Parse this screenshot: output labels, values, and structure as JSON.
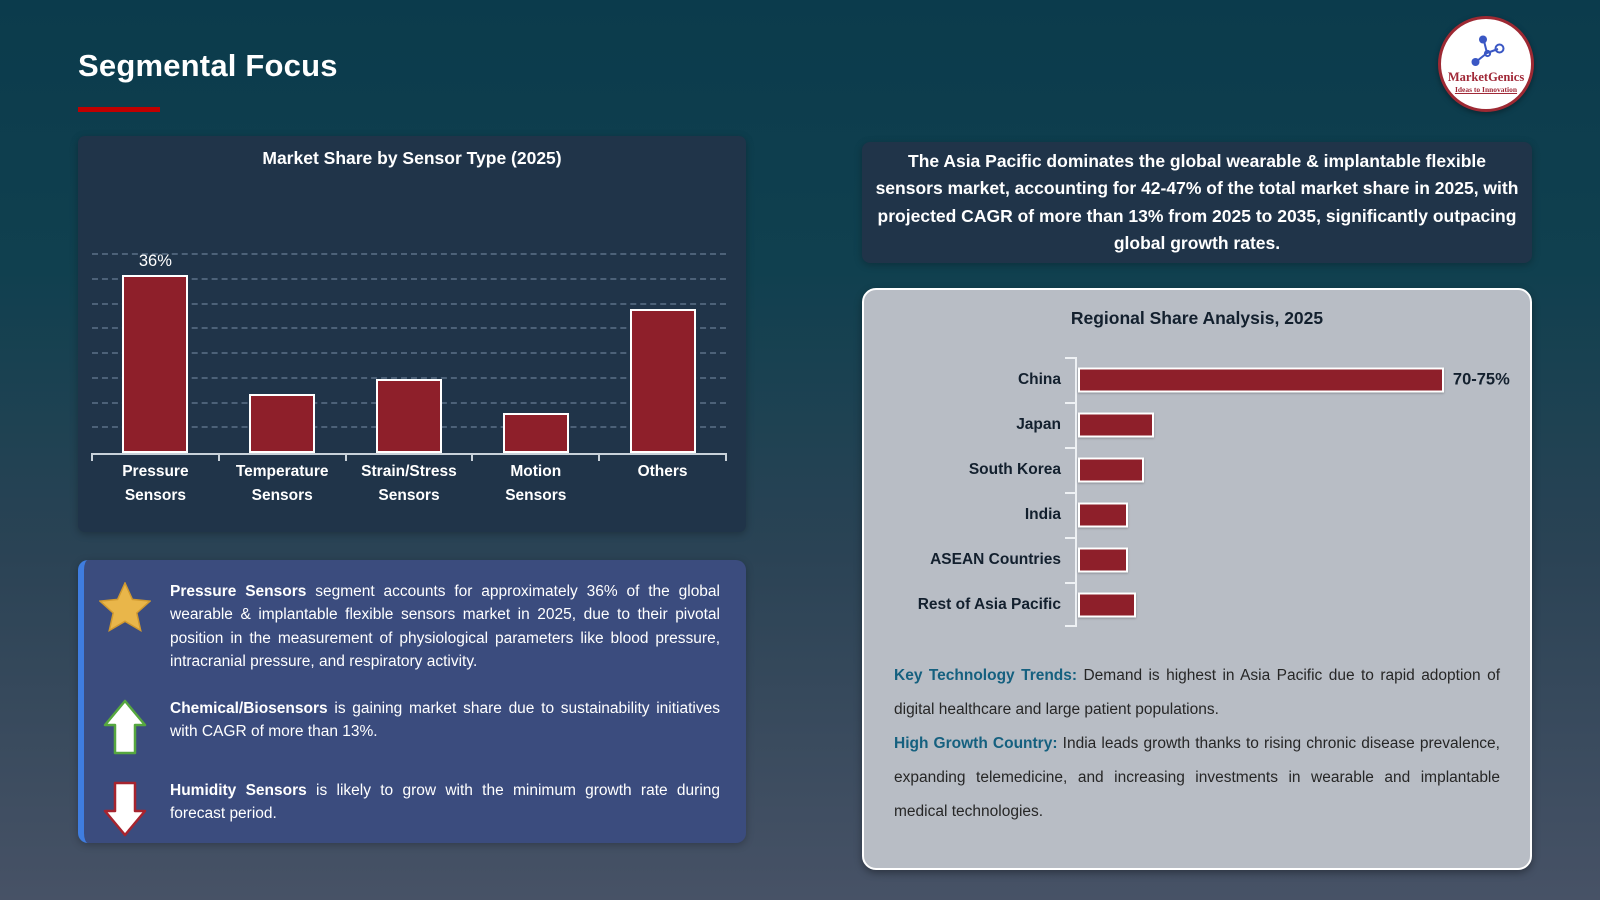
{
  "title": "Segmental Focus",
  "logo": {
    "name": "MarketGenics",
    "tagline": "Ideas to Innovation"
  },
  "callout": "The Asia Pacific dominates the global wearable & implantable flexible sensors market, accounting for 42-47% of the total market share in 2025, with projected CAGR of more than 13% from 2025 to 2035, significantly outpacing global growth rates.",
  "insights": [
    {
      "icon": "star",
      "lead": "Pressure Sensors",
      "text": "segment accounts for approximately 36% of the global wearable & implantable flexible sensors market in 2025, due to their pivotal position in the measurement of physiological parameters like blood pressure, intracranial pressure, and respiratory activity."
    },
    {
      "icon": "arrow-up",
      "lead": "Chemical/Biosensors",
      "text": "is gaining market share due to sustainability initiatives with CAGR of more than 13%."
    },
    {
      "icon": "arrow-down",
      "lead": "Humidity Sensors",
      "text": "is likely to grow with the minimum growth rate during forecast period."
    }
  ],
  "trends": [
    {
      "lead": "Key Technology Trends:",
      "text": "Demand is highest in Asia Pacific due to rapid adoption of digital healthcare and large patient populations."
    },
    {
      "lead": "High Growth Country:",
      "text": "India leads growth thanks to rising chronic disease prevalence, expanding telemedicine, and increasing investments in wearable and implantable medical technologies."
    }
  ],
  "chart_data": [
    {
      "type": "bar",
      "title": "Market Share by Sensor Type (2025)",
      "categories": [
        "Pressure Sensors",
        "Temperature Sensors",
        "Strain/Stress Sensors",
        "Motion Sensors",
        "Others"
      ],
      "values": [
        36,
        12,
        15,
        8,
        29
      ],
      "data_labels": [
        "36%",
        "",
        "",
        "",
        ""
      ],
      "xlabel": "",
      "ylabel": "",
      "ylim": [
        0,
        40
      ],
      "gridline_step": 5,
      "grid": "dashed-horizontal",
      "legend": "none",
      "bar_color": "#8e1f2a",
      "bar_border_color": "#ffffff"
    },
    {
      "type": "bar-horizontal",
      "title": "Regional Share Analysis, 2025",
      "categories": [
        "China",
        "Japan",
        "South Korea",
        "India",
        "ASEAN Countries",
        "Rest of Asia Pacific"
      ],
      "values": [
        72.5,
        15,
        13,
        10,
        10,
        11.5
      ],
      "data_labels": [
        "70-75%",
        "",
        "",
        "",
        "",
        ""
      ],
      "xlabel": "",
      "ylabel": "",
      "xlim": [
        0,
        85
      ],
      "grid": "off",
      "legend": "none",
      "note": "Only the China bar carries an explicit value label (70-75%); other values are estimated from bar lengths.",
      "bar_color": "#8e1f2a",
      "bar_border_color": "#ffffff"
    }
  ],
  "colors": {
    "background_top": "#0b3b4c",
    "background_bottom": "#475266",
    "dark_panel": "#203449",
    "bar_red": "#8e1f2a",
    "insight_box_blue": "#3b4c7e",
    "insight_accent_blue": "#3f7de0",
    "gray_panel": "#b8bdc5",
    "teal_lead": "#15607f",
    "title_underline_red": "#c00000",
    "star_gold": "#e9b64a",
    "arrow_up_green": "#56a73f",
    "arrow_down_red": "#a6242f"
  }
}
